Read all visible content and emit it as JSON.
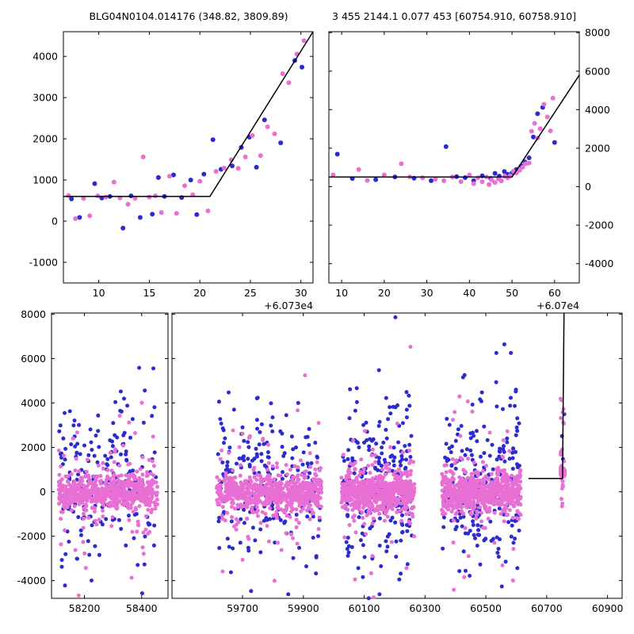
{
  "figure": {
    "background": "#ffffff"
  },
  "colors": {
    "blue": "#2b2bd0",
    "pink": "#e86fd4",
    "line": "#000000"
  },
  "chart_data": [
    {
      "id": "top-left",
      "type": "scatter",
      "title": "BLG04N0104.014176 (348.82, 3809.89)",
      "xlim": [
        6.5,
        31.2
      ],
      "ylim": [
        -1500,
        4600
      ],
      "xticks": [
        10,
        15,
        20,
        25,
        30
      ],
      "yticks": [
        -1000,
        0,
        1000,
        2000,
        3000,
        4000
      ],
      "x_offset_label": "+6.073e4",
      "y_label_side": "left",
      "model_line": [
        [
          6.5,
          600
        ],
        [
          21,
          600
        ],
        [
          31.2,
          4600
        ]
      ],
      "series": [
        {
          "name": "blue",
          "color_key": "blue",
          "points": [
            [
              7.3,
              540
            ],
            [
              8.1,
              90
            ],
            [
              9.6,
              910
            ],
            [
              10.3,
              560
            ],
            [
              11.1,
              600
            ],
            [
              12.4,
              -170
            ],
            [
              13.2,
              615
            ],
            [
              14.1,
              90
            ],
            [
              15.3,
              170
            ],
            [
              15.9,
              1060
            ],
            [
              16.5,
              600
            ],
            [
              17.4,
              1120
            ],
            [
              18.2,
              575
            ],
            [
              19.1,
              1000
            ],
            [
              19.7,
              160
            ],
            [
              20.4,
              1140
            ],
            [
              21.3,
              1980
            ],
            [
              22.1,
              1260
            ],
            [
              23.2,
              1340
            ],
            [
              24.1,
              1790
            ],
            [
              24.9,
              2040
            ],
            [
              25.6,
              1310
            ],
            [
              26.4,
              2460
            ],
            [
              28.0,
              1900
            ],
            [
              29.4,
              3900
            ],
            [
              30.1,
              3740
            ]
          ]
        },
        {
          "name": "pink",
          "color_key": "pink",
          "points": [
            [
              7.0,
              620
            ],
            [
              7.7,
              60
            ],
            [
              8.5,
              555
            ],
            [
              9.1,
              130
            ],
            [
              9.9,
              615
            ],
            [
              10.7,
              585
            ],
            [
              11.5,
              950
            ],
            [
              12.1,
              565
            ],
            [
              12.9,
              410
            ],
            [
              13.6,
              555
            ],
            [
              14.4,
              1560
            ],
            [
              15.0,
              585
            ],
            [
              15.6,
              615
            ],
            [
              16.2,
              210
            ],
            [
              17.0,
              1090
            ],
            [
              17.7,
              190
            ],
            [
              18.5,
              860
            ],
            [
              19.3,
              640
            ],
            [
              20.0,
              970
            ],
            [
              20.8,
              250
            ],
            [
              21.6,
              1210
            ],
            [
              22.4,
              1290
            ],
            [
              23.1,
              1490
            ],
            [
              23.8,
              1280
            ],
            [
              24.5,
              1560
            ],
            [
              25.2,
              2080
            ],
            [
              26.0,
              1590
            ],
            [
              26.7,
              2290
            ],
            [
              27.4,
              2120
            ],
            [
              28.2,
              3580
            ],
            [
              28.8,
              3360
            ],
            [
              29.6,
              4060
            ],
            [
              30.3,
              4380
            ]
          ]
        }
      ]
    },
    {
      "id": "top-right",
      "type": "scatter",
      "title": "3 455 2144.1 0.077 453 [60754.910, 60758.910]",
      "xlim": [
        7,
        65.8
      ],
      "ylim": [
        -5000,
        8050
      ],
      "xticks": [
        10,
        20,
        30,
        40,
        50,
        60
      ],
      "yticks": [
        -4000,
        -2000,
        0,
        2000,
        4000,
        6000,
        8000
      ],
      "x_offset_label": "+6.07e4",
      "y_label_side": "right",
      "model_line": [
        [
          7,
          500
        ],
        [
          50,
          500
        ],
        [
          65.8,
          5800
        ]
      ],
      "series": [
        {
          "name": "blue",
          "color_key": "blue",
          "points": [
            [
              9,
              1690
            ],
            [
              12.5,
              420
            ],
            [
              18,
              360
            ],
            [
              22.5,
              510
            ],
            [
              27,
              440
            ],
            [
              31,
              310
            ],
            [
              34.5,
              2080
            ],
            [
              37,
              520
            ],
            [
              39,
              470
            ],
            [
              41,
              310
            ],
            [
              43,
              560
            ],
            [
              45,
              430
            ],
            [
              46,
              690
            ],
            [
              47,
              550
            ],
            [
              48.2,
              790
            ],
            [
              49,
              640
            ],
            [
              50,
              710
            ],
            [
              51,
              890
            ],
            [
              52.2,
              1080
            ],
            [
              53,
              1290
            ],
            [
              54,
              1500
            ],
            [
              55,
              2580
            ],
            [
              56,
              3790
            ],
            [
              57.2,
              4120
            ],
            [
              60,
              2300
            ]
          ]
        },
        {
          "name": "pink",
          "color_key": "pink",
          "points": [
            [
              8,
              610
            ],
            [
              14,
              890
            ],
            [
              16,
              320
            ],
            [
              20,
              610
            ],
            [
              24,
              1190
            ],
            [
              26,
              510
            ],
            [
              29,
              460
            ],
            [
              32,
              390
            ],
            [
              34,
              310
            ],
            [
              36,
              500
            ],
            [
              38,
              260
            ],
            [
              40,
              610
            ],
            [
              41,
              160
            ],
            [
              42,
              460
            ],
            [
              43,
              260
            ],
            [
              44,
              500
            ],
            [
              44.6,
              110
            ],
            [
              45.2,
              350
            ],
            [
              46,
              210
            ],
            [
              46.8,
              400
            ],
            [
              47.5,
              300
            ],
            [
              48.3,
              550
            ],
            [
              49,
              460
            ],
            [
              49.6,
              560
            ],
            [
              50.3,
              800
            ],
            [
              51,
              710
            ],
            [
              51.8,
              860
            ],
            [
              52.5,
              1010
            ],
            [
              53.2,
              1190
            ],
            [
              54,
              1230
            ],
            [
              54.6,
              2880
            ],
            [
              55.3,
              3290
            ],
            [
              56,
              2520
            ],
            [
              56.6,
              3010
            ],
            [
              57.5,
              4280
            ],
            [
              58.3,
              3620
            ],
            [
              59,
              2900
            ],
            [
              59.6,
              4600
            ]
          ]
        }
      ]
    },
    {
      "id": "bottom",
      "type": "scatter",
      "title": "",
      "panels": [
        {
          "xlim": [
            58085,
            58492
          ]
        },
        {
          "xlim": [
            59468,
            60948
          ]
        }
      ],
      "ylim": [
        -4800,
        8050
      ],
      "yticks": [
        -4000,
        -2000,
        0,
        2000,
        4000,
        6000,
        8000
      ],
      "panel_xticks": [
        [
          58200,
          58400
        ],
        [
          59700,
          59900,
          60100,
          60300,
          60500,
          60700,
          60900
        ]
      ],
      "y_label_side": "left",
      "model_line": [
        [
          60640,
          600
        ],
        [
          60752,
          600
        ],
        [
          60757,
          8050
        ]
      ],
      "seed": 12345,
      "clusters": [
        {
          "series": "pink",
          "x_range": [
            58110,
            58455
          ],
          "n": 520,
          "y_mean": -30,
          "y_sigma": 380
        },
        {
          "series": "pink",
          "x_range": [
            58110,
            58455
          ],
          "n": 110,
          "y_mean": 0,
          "y_sigma": 900
        },
        {
          "series": "pink",
          "x_range": [
            58112,
            58450
          ],
          "n": 38,
          "y_mean": 0,
          "y_sigma": 2400
        },
        {
          "series": "blue",
          "x_range": [
            58112,
            58452
          ],
          "n": 130,
          "y_mean": 300,
          "y_sigma": 1500
        },
        {
          "series": "blue",
          "x_range": [
            58115,
            58450
          ],
          "n": 70,
          "y_mean": 500,
          "y_sigma": 3000
        },
        {
          "series": "pink",
          "x_range": [
            59615,
            59960
          ],
          "n": 560,
          "y_mean": -30,
          "y_sigma": 380
        },
        {
          "series": "pink",
          "x_range": [
            59615,
            59960
          ],
          "n": 120,
          "y_mean": 0,
          "y_sigma": 900
        },
        {
          "series": "pink",
          "x_range": [
            59618,
            59955
          ],
          "n": 42,
          "y_mean": 0,
          "y_sigma": 2400
        },
        {
          "series": "blue",
          "x_range": [
            59618,
            59955
          ],
          "n": 150,
          "y_mean": 300,
          "y_sigma": 1500
        },
        {
          "series": "blue",
          "x_range": [
            59620,
            59952
          ],
          "n": 80,
          "y_mean": 500,
          "y_sigma": 3000
        },
        {
          "series": "pink",
          "x_range": [
            60025,
            60265
          ],
          "n": 520,
          "y_mean": -30,
          "y_sigma": 380
        },
        {
          "series": "pink",
          "x_range": [
            60025,
            60265
          ],
          "n": 110,
          "y_mean": 0,
          "y_sigma": 900
        },
        {
          "series": "pink",
          "x_range": [
            60028,
            60262
          ],
          "n": 36,
          "y_mean": 0,
          "y_sigma": 2400
        },
        {
          "series": "blue",
          "x_range": [
            60028,
            60262
          ],
          "n": 160,
          "y_mean": 400,
          "y_sigma": 1600
        },
        {
          "series": "blue",
          "x_range": [
            60030,
            60260
          ],
          "n": 85,
          "y_mean": 600,
          "y_sigma": 3000
        },
        {
          "series": "pink",
          "x_range": [
            60355,
            60615
          ],
          "n": 560,
          "y_mean": -30,
          "y_sigma": 380
        },
        {
          "series": "pink",
          "x_range": [
            60355,
            60615
          ],
          "n": 115,
          "y_mean": 0,
          "y_sigma": 900
        },
        {
          "series": "pink",
          "x_range": [
            60358,
            60612
          ],
          "n": 40,
          "y_mean": 0,
          "y_sigma": 2400
        },
        {
          "series": "blue",
          "x_range": [
            60358,
            60612
          ],
          "n": 150,
          "y_mean": 300,
          "y_sigma": 1500
        },
        {
          "series": "blue",
          "x_range": [
            60360,
            60610
          ],
          "n": 75,
          "y_mean": 500,
          "y_sigma": 3000
        },
        {
          "series": "pink",
          "x_range": [
            60744,
            60760
          ],
          "n": 22,
          "y_mean": 700,
          "y_sigma": 300
        },
        {
          "series": "pink",
          "x_range": [
            60744,
            60760
          ],
          "n": 16,
          "y_mean": 2400,
          "y_sigma": 1100
        },
        {
          "series": "pink",
          "x_range": [
            60746,
            60758
          ],
          "n": 3,
          "y_mean": -650,
          "y_sigma": 250
        },
        {
          "series": "blue",
          "x_range": [
            60746,
            60760
          ],
          "n": 4,
          "y_mean": 1400,
          "y_sigma": 800
        }
      ]
    }
  ]
}
